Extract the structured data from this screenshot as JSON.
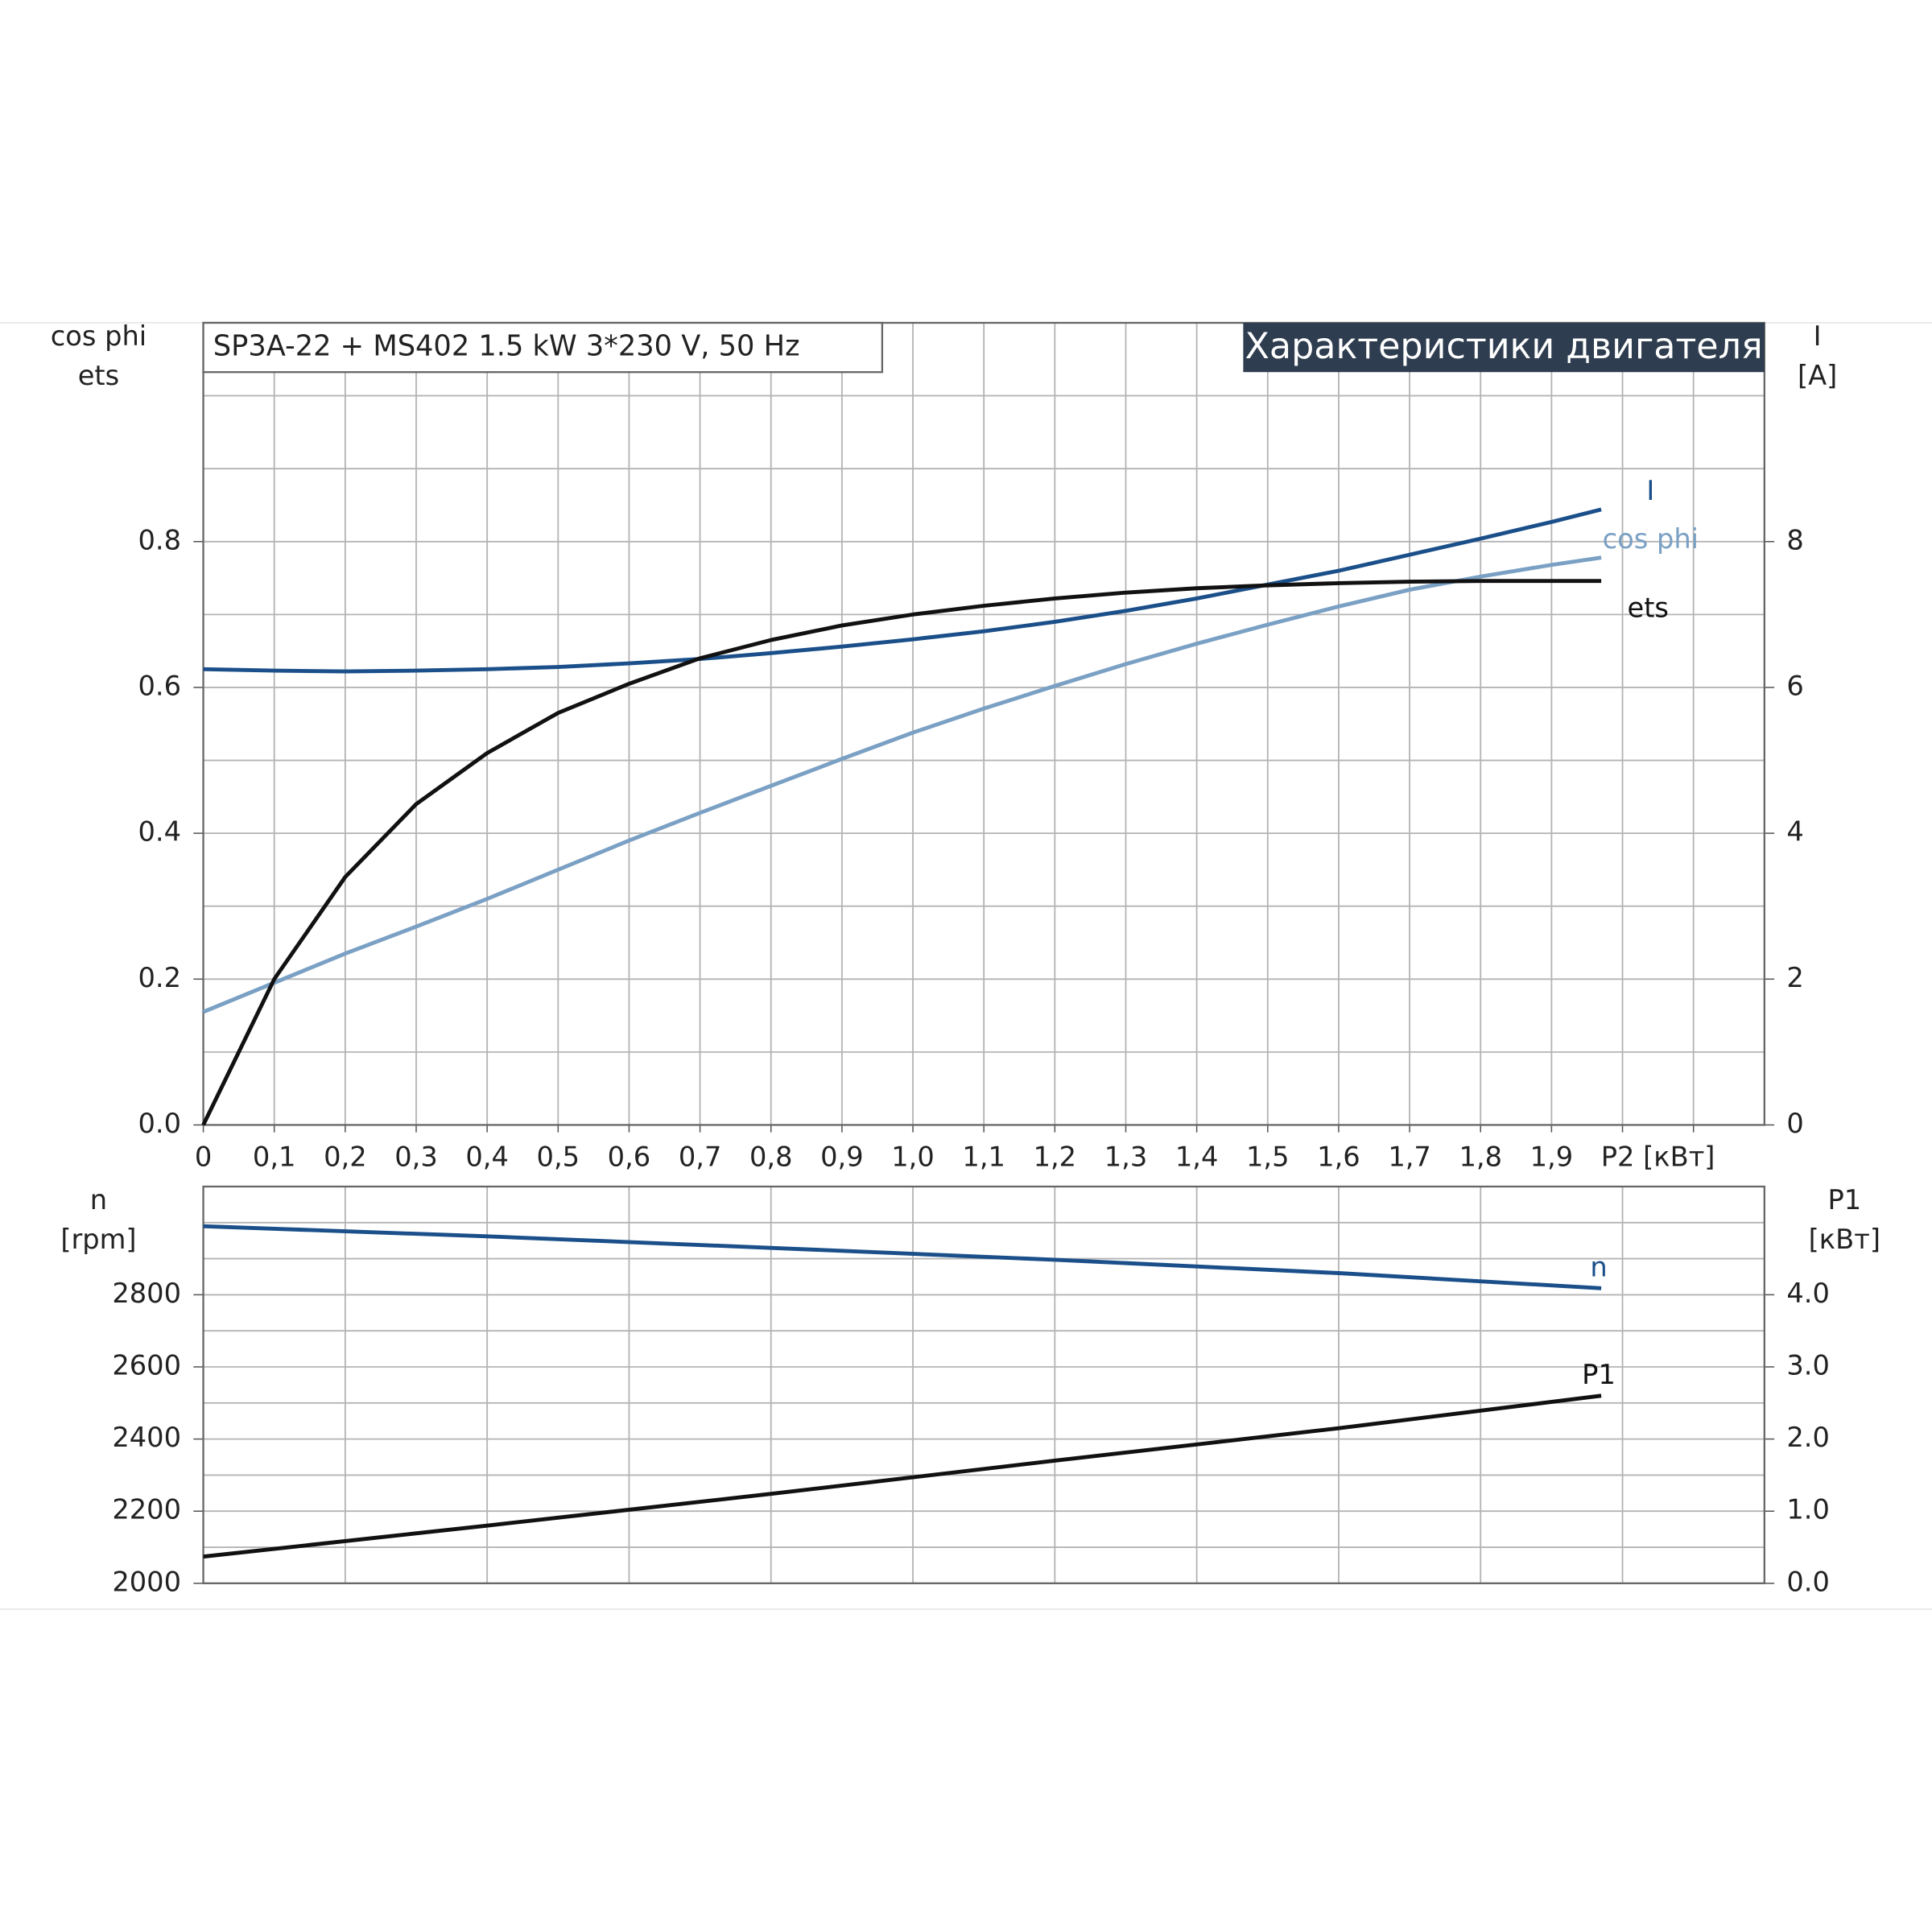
{
  "chart_data": [
    {
      "type": "line",
      "title": "SP3A-22 + MS402   1.5 kW   3*230 V, 50 Hz",
      "header": "Характеристики двигателя",
      "ylabel": [
        "cos phi",
        "ets"
      ],
      "y2label": [
        "I",
        "[A]"
      ],
      "xlabel": "P2 [кВт]",
      "xlim": [
        0,
        2.2
      ],
      "xticks": [
        0,
        {
          "value": 0.1,
          "label": "0,1"
        },
        {
          "value": 0.2,
          "label": "0,2"
        },
        {
          "value": 0.3,
          "label": "0,3"
        },
        {
          "value": 0.4,
          "label": "0,4"
        },
        {
          "value": 0.5,
          "label": "0,5"
        },
        {
          "value": 0.6,
          "label": "0,6"
        },
        {
          "value": 0.7,
          "label": "0,7"
        },
        {
          "value": 0.8,
          "label": "0,8"
        },
        {
          "value": 0.9,
          "label": "0,9"
        },
        {
          "value": 1.0,
          "label": "1,0"
        },
        {
          "value": 1.1,
          "label": "1,1"
        },
        {
          "value": 1.2,
          "label": "1,2"
        },
        {
          "value": 1.3,
          "label": "1,3"
        },
        {
          "value": 1.4,
          "label": "1,4"
        },
        {
          "value": 1.5,
          "label": "1,5"
        },
        {
          "value": 1.6,
          "label": "1,6"
        },
        {
          "value": 1.7,
          "label": "1,7"
        },
        {
          "value": 1.8,
          "label": "1,8"
        },
        {
          "value": 1.9,
          "label": "1,9"
        }
      ],
      "xgrid": [
        2.0,
        2.1
      ],
      "ylim": [
        0,
        1.1
      ],
      "yticks": [
        {
          "value": 0,
          "label": "0.0"
        },
        0.2,
        0.4,
        0.6,
        0.8
      ],
      "ygrid": [
        0.1,
        0.3,
        0.5,
        0.7,
        0.9,
        1.0
      ],
      "y2lim": [
        0,
        11
      ],
      "y2ticks": [
        0,
        2,
        4,
        6,
        8
      ],
      "grid": true,
      "x": [
        0,
        0.1,
        0.2,
        0.3,
        0.4,
        0.5,
        0.6,
        0.7,
        0.8,
        0.9,
        1.0,
        1.1,
        1.2,
        1.3,
        1.4,
        1.5,
        1.6,
        1.7,
        1.8,
        1.9,
        1.97
      ],
      "series": [
        {
          "name": "I",
          "color": "#1b4f8a",
          "axis": "y2",
          "values": [
            6.25,
            6.23,
            6.22,
            6.23,
            6.25,
            6.28,
            6.33,
            6.39,
            6.47,
            6.56,
            6.66,
            6.77,
            6.9,
            7.05,
            7.22,
            7.41,
            7.6,
            7.82,
            8.04,
            8.27,
            8.44
          ]
        },
        {
          "name": "cos phi",
          "color": "#7aa0c4",
          "values": [
            0.155,
            0.195,
            0.235,
            0.272,
            0.31,
            0.35,
            0.39,
            0.428,
            0.465,
            0.502,
            0.538,
            0.571,
            0.602,
            0.632,
            0.66,
            0.686,
            0.711,
            0.734,
            0.752,
            0.768,
            0.778
          ]
        },
        {
          "name": "ets",
          "color": "#111111",
          "values": [
            0,
            0.2,
            0.34,
            0.44,
            0.51,
            0.565,
            0.605,
            0.64,
            0.665,
            0.685,
            0.7,
            0.712,
            0.722,
            0.73,
            0.736,
            0.74,
            0.743,
            0.745,
            0.746,
            0.746,
            0.746
          ]
        }
      ]
    },
    {
      "type": "line",
      "ylabel": [
        "n",
        "[rpm]"
      ],
      "y2label": [
        "P1",
        "[кВт]"
      ],
      "xlim": [
        0,
        2.2
      ],
      "xgrid": [
        0.2,
        0.4,
        0.6,
        0.8,
        1.0,
        1.2,
        1.4,
        1.6,
        1.8,
        2.0
      ],
      "ylim": [
        2000,
        3100
      ],
      "yticks": [
        2000,
        2200,
        2400,
        2600,
        2800
      ],
      "ygrid": [
        2100,
        2300,
        2500,
        2700,
        2900,
        3000
      ],
      "y2lim": [
        0,
        5.5
      ],
      "y2ticks": [
        {
          "value": 0,
          "label": "0.0"
        },
        {
          "value": 1,
          "label": "1.0"
        },
        {
          "value": 2,
          "label": "2.0"
        },
        {
          "value": 3,
          "label": "3.0"
        },
        {
          "value": 4,
          "label": "4.0"
        }
      ],
      "grid": true,
      "x": [
        0,
        0.4,
        0.8,
        1.2,
        1.6,
        1.97
      ],
      "series": [
        {
          "name": "n",
          "color": "#1b4f8a",
          "values": [
            2990,
            2962,
            2930,
            2897,
            2860,
            2818
          ]
        },
        {
          "name": "P1",
          "color": "#111111",
          "axis": "y2",
          "values": [
            0.37,
            0.8,
            1.24,
            1.7,
            2.15,
            2.6
          ]
        }
      ]
    }
  ]
}
